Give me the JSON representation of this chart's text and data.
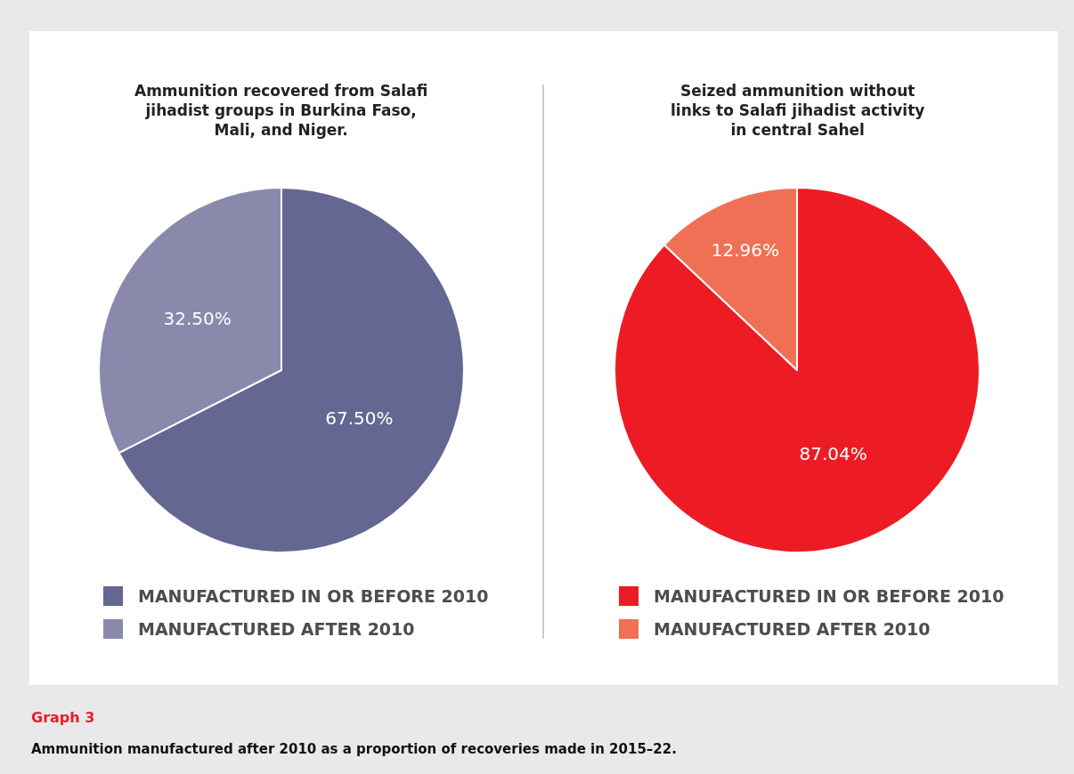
{
  "chart_data": [
    {
      "type": "pie",
      "title": "Ammunition recovered from Salafi\njihadist groups in Burkina Faso,\nMali, and Niger.",
      "categories": [
        "MANUFACTURED IN OR BEFORE 2010",
        "MANUFACTURED AFTER 2010"
      ],
      "values": [
        67.5,
        32.5
      ],
      "value_labels": [
        "67.50%",
        "32.50%"
      ],
      "colors": [
        "#636792",
        "#8a89ab"
      ],
      "legend": "bottom",
      "annotations": [
        "Graph 3",
        "Ammunition manufactured after 2010 as a proportion of recoveries made in 2015–22."
      ]
    },
    {
      "type": "pie",
      "title": "Seized ammunition without\nlinks to Salafi jihadist activity\nin central Sahel",
      "categories": [
        "MANUFACTURED IN OR BEFORE 2010",
        "MANUFACTURED AFTER 2010"
      ],
      "values": [
        87.04,
        12.96
      ],
      "value_labels": [
        "87.04%",
        "12.96%"
      ],
      "colors": [
        "#ed1c24",
        "#f07055"
      ],
      "legend": "bottom"
    }
  ]
}
